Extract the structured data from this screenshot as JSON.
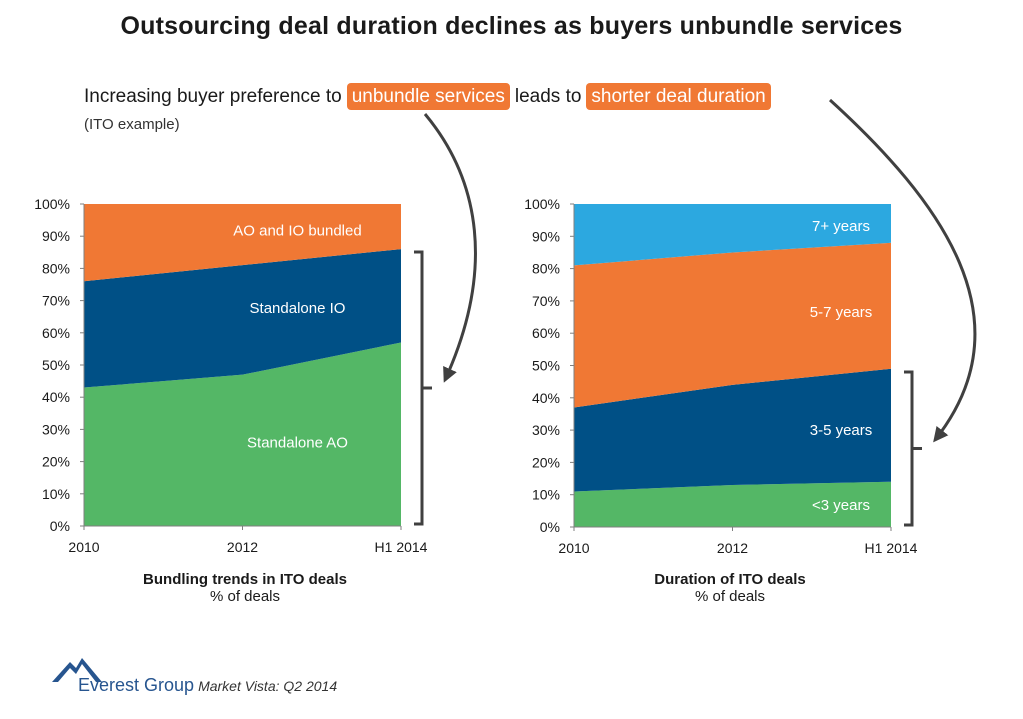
{
  "title": "Outsourcing deal duration declines as buyers unbundle services",
  "intro": {
    "part1": "Increasing buyer preference to",
    "highlight1": "unbundle services",
    "part2": "leads to",
    "highlight2": "shorter deal duration",
    "subtitle": "(ITO example)"
  },
  "colors": {
    "orange": "#f07834",
    "navy": "#005086",
    "green": "#54b766",
    "light_blue": "#2ca8e0"
  },
  "chart_data": [
    {
      "type": "area",
      "stacked": true,
      "title": "Bundling trends in ITO deals",
      "subtitle": "% of deals",
      "x": [
        "2010",
        "2012",
        "H1 2014"
      ],
      "ylim": [
        0,
        100
      ],
      "yticks": [
        "0%",
        "10%",
        "20%",
        "30%",
        "40%",
        "50%",
        "60%",
        "70%",
        "80%",
        "90%",
        "100%"
      ],
      "grid": false,
      "series": [
        {
          "name": "Standalone AO",
          "values": [
            43,
            47,
            57
          ],
          "color": "#54b766"
        },
        {
          "name": "Standalone IO",
          "values": [
            33,
            34,
            29
          ],
          "color": "#005086"
        },
        {
          "name": "AO and IO bundled",
          "values": [
            24,
            19,
            14
          ],
          "color": "#f07834"
        }
      ]
    },
    {
      "type": "area",
      "stacked": true,
      "title": "Duration of ITO deals",
      "subtitle": "% of deals",
      "x": [
        "2010",
        "2012",
        "H1 2014"
      ],
      "ylim": [
        0,
        100
      ],
      "yticks": [
        "0%",
        "10%",
        "20%",
        "30%",
        "40%",
        "50%",
        "60%",
        "70%",
        "80%",
        "90%",
        "100%"
      ],
      "grid": false,
      "series": [
        {
          "name": "<3 years",
          "values": [
            11,
            13,
            14
          ],
          "color": "#54b766"
        },
        {
          "name": "3-5 years",
          "values": [
            26,
            31,
            35
          ],
          "color": "#005086"
        },
        {
          "name": "5-7 years",
          "values": [
            44,
            41,
            39
          ],
          "color": "#f07834"
        },
        {
          "name": "7+ years",
          "values": [
            19,
            15,
            12
          ],
          "color": "#2ca8e0"
        }
      ]
    }
  ],
  "source": {
    "brand": "Everest Group",
    "label": "Market Vista: Q2 2014"
  }
}
